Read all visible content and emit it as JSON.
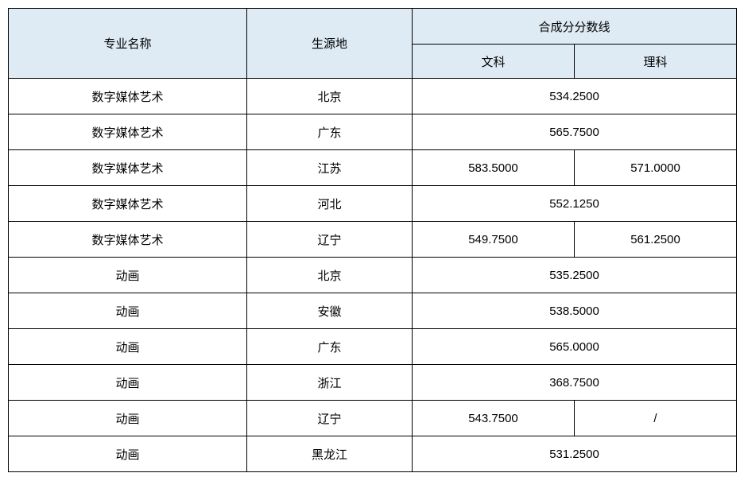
{
  "table": {
    "header_bg": "#deebf4",
    "border_color": "#000000",
    "font_size": 15,
    "columns": {
      "major": "专业名称",
      "region": "生源地",
      "score_group": "合成分分数线",
      "score_wen": "文科",
      "score_li": "理科"
    },
    "rows": [
      {
        "major": "数字媒体艺术",
        "region": "北京",
        "merged": true,
        "score": "534.2500"
      },
      {
        "major": "数字媒体艺术",
        "region": "广东",
        "merged": true,
        "score": "565.7500"
      },
      {
        "major": "数字媒体艺术",
        "region": "江苏",
        "merged": false,
        "wen": "583.5000",
        "li": "571.0000"
      },
      {
        "major": "数字媒体艺术",
        "region": "河北",
        "merged": true,
        "score": "552.1250"
      },
      {
        "major": "数字媒体艺术",
        "region": "辽宁",
        "merged": false,
        "wen": "549.7500",
        "li": "561.2500"
      },
      {
        "major": "动画",
        "region": "北京",
        "merged": true,
        "score": "535.2500"
      },
      {
        "major": "动画",
        "region": "安徽",
        "merged": true,
        "score": "538.5000"
      },
      {
        "major": "动画",
        "region": "广东",
        "merged": true,
        "score": "565.0000"
      },
      {
        "major": "动画",
        "region": "浙江",
        "merged": true,
        "score": "368.7500"
      },
      {
        "major": "动画",
        "region": "辽宁",
        "merged": false,
        "wen": "543.7500",
        "li": "/"
      },
      {
        "major": "动画",
        "region": "黑龙江",
        "merged": true,
        "score": "531.2500"
      }
    ]
  }
}
